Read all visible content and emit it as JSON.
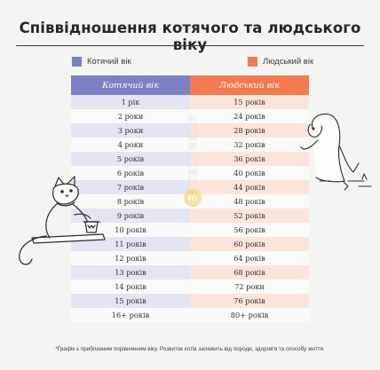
{
  "title": "Співвідношення котячого та людського віку",
  "legend": {
    "cat_label": "Котячий вік",
    "human_label": "Людський вік"
  },
  "colors": {
    "cat_accent": "#7d80c4",
    "human_accent": "#f47a50",
    "cat_row_tint": "#e4e4f2",
    "human_row_tint": "#fbe4da"
  },
  "table": {
    "headers": [
      "Котячий вік",
      "Людський вік"
    ],
    "rows": [
      [
        "1 рік",
        "15 років"
      ],
      [
        "2 роки",
        "24 років"
      ],
      [
        "3 роки",
        "28 років"
      ],
      [
        "4 роки",
        "32 років"
      ],
      [
        "5 років",
        "36 років"
      ],
      [
        "6 років",
        "40 років"
      ],
      [
        "7 років",
        "44 років"
      ],
      [
        "8 років",
        "48 років"
      ],
      [
        "9 років",
        "52 років"
      ],
      [
        "10 років",
        "56 років"
      ],
      [
        "11 років",
        "60 років"
      ],
      [
        "12 років",
        "64 років"
      ],
      [
        "13 років",
        "68 років"
      ],
      [
        "14 років",
        "72 роки"
      ],
      [
        "15 років",
        "76 років"
      ],
      [
        "16+ років",
        "80+ років"
      ]
    ]
  },
  "watermark": "TELEGRAF",
  "footnote": "*Графік є приблизним порівнянням віку. Розвиток котів залежить від породи, здоров'я та способу життя.",
  "illustrations": [
    "cat-on-shelf",
    "girl-peeking"
  ]
}
